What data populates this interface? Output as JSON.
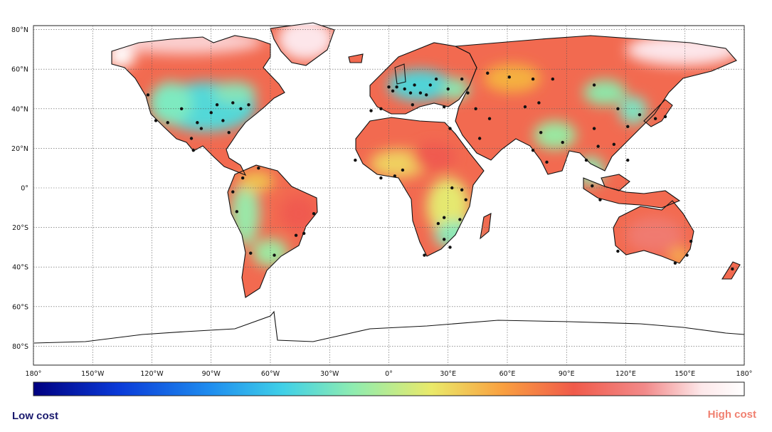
{
  "map": {
    "lat_ticks": [
      {
        "value": 80,
        "label": "80°N"
      },
      {
        "value": 60,
        "label": "60°N"
      },
      {
        "value": 40,
        "label": "40°N"
      },
      {
        "value": 20,
        "label": "20°N"
      },
      {
        "value": 0,
        "label": "0°"
      },
      {
        "value": -20,
        "label": "20°S"
      },
      {
        "value": -40,
        "label": "40°S"
      },
      {
        "value": -60,
        "label": "60°S"
      },
      {
        "value": -80,
        "label": "80°S"
      }
    ],
    "lon_ticks": [
      {
        "value": -180,
        "label": "180°"
      },
      {
        "value": -150,
        "label": "150°W"
      },
      {
        "value": -120,
        "label": "120°W"
      },
      {
        "value": -90,
        "label": "90°W"
      },
      {
        "value": -60,
        "label": "60°W"
      },
      {
        "value": -30,
        "label": "30°W"
      },
      {
        "value": 0,
        "label": "0°"
      },
      {
        "value": 30,
        "label": "30°E"
      },
      {
        "value": 60,
        "label": "60°E"
      },
      {
        "value": 90,
        "label": "90°E"
      },
      {
        "value": 120,
        "label": "120°E"
      },
      {
        "value": 150,
        "label": "150°E"
      },
      {
        "value": 180,
        "label": "180°"
      }
    ],
    "cities": [
      [
        -122,
        47
      ],
      [
        -118,
        34
      ],
      [
        -112,
        33
      ],
      [
        -105,
        40
      ],
      [
        -97,
        33
      ],
      [
        -95,
        30
      ],
      [
        -90,
        38
      ],
      [
        -87,
        42
      ],
      [
        -84,
        34
      ],
      [
        -81,
        28
      ],
      [
        -75,
        40
      ],
      [
        -71,
        42
      ],
      [
        -79,
        43
      ],
      [
        -99,
        19
      ],
      [
        -100,
        25
      ],
      [
        -74,
        5
      ],
      [
        -77,
        -12
      ],
      [
        -70,
        -33
      ],
      [
        -58,
        -34
      ],
      [
        -47,
        -24
      ],
      [
        -43,
        -23
      ],
      [
        -38,
        -13
      ],
      [
        -79,
        -2
      ],
      [
        -66,
        10
      ],
      [
        0,
        51
      ],
      [
        2,
        49
      ],
      [
        4,
        51
      ],
      [
        8,
        50
      ],
      [
        11,
        48
      ],
      [
        13,
        52
      ],
      [
        16,
        48
      ],
      [
        19,
        47
      ],
      [
        21,
        52
      ],
      [
        24,
        55
      ],
      [
        -4,
        40
      ],
      [
        -9,
        39
      ],
      [
        12,
        42
      ],
      [
        28,
        41
      ],
      [
        30,
        50
      ],
      [
        37,
        55
      ],
      [
        44,
        40
      ],
      [
        31,
        30
      ],
      [
        46,
        25
      ],
      [
        51,
        35
      ],
      [
        3,
        6
      ],
      [
        -4,
        5
      ],
      [
        7,
        9
      ],
      [
        -17,
        14
      ],
      [
        32,
        0
      ],
      [
        37,
        -1
      ],
      [
        28,
        -26
      ],
      [
        18,
        -34
      ],
      [
        31,
        -30
      ],
      [
        25,
        -18
      ],
      [
        28,
        -15
      ],
      [
        39,
        -6
      ],
      [
        36,
        -16
      ],
      [
        69,
        41
      ],
      [
        77,
        28
      ],
      [
        73,
        19
      ],
      [
        88,
        23
      ],
      [
        80,
        13
      ],
      [
        76,
        43
      ],
      [
        104,
        30
      ],
      [
        116,
        40
      ],
      [
        121,
        31
      ],
      [
        114,
        22
      ],
      [
        127,
        37
      ],
      [
        140,
        36
      ],
      [
        135,
        35
      ],
      [
        100,
        14
      ],
      [
        106,
        21
      ],
      [
        103,
        1
      ],
      [
        107,
        -6
      ],
      [
        121,
        14
      ],
      [
        151,
        -34
      ],
      [
        145,
        -38
      ],
      [
        153,
        -27
      ],
      [
        116,
        -32
      ],
      [
        174,
        -41
      ],
      [
        83,
        55
      ],
      [
        61,
        56
      ],
      [
        104,
        52
      ],
      [
        50,
        58
      ],
      [
        40,
        48
      ],
      [
        73,
        55
      ]
    ]
  },
  "legend": {
    "low_label": "Low cost",
    "high_label": "High cost",
    "gradient_colors": [
      "#000080",
      "#0a3ad8",
      "#1f8eef",
      "#3fd0e8",
      "#8fecb0",
      "#eaea6a",
      "#f9a040",
      "#f05a4a",
      "#f28a8a",
      "#fde8ea",
      "#ffffff"
    ]
  }
}
